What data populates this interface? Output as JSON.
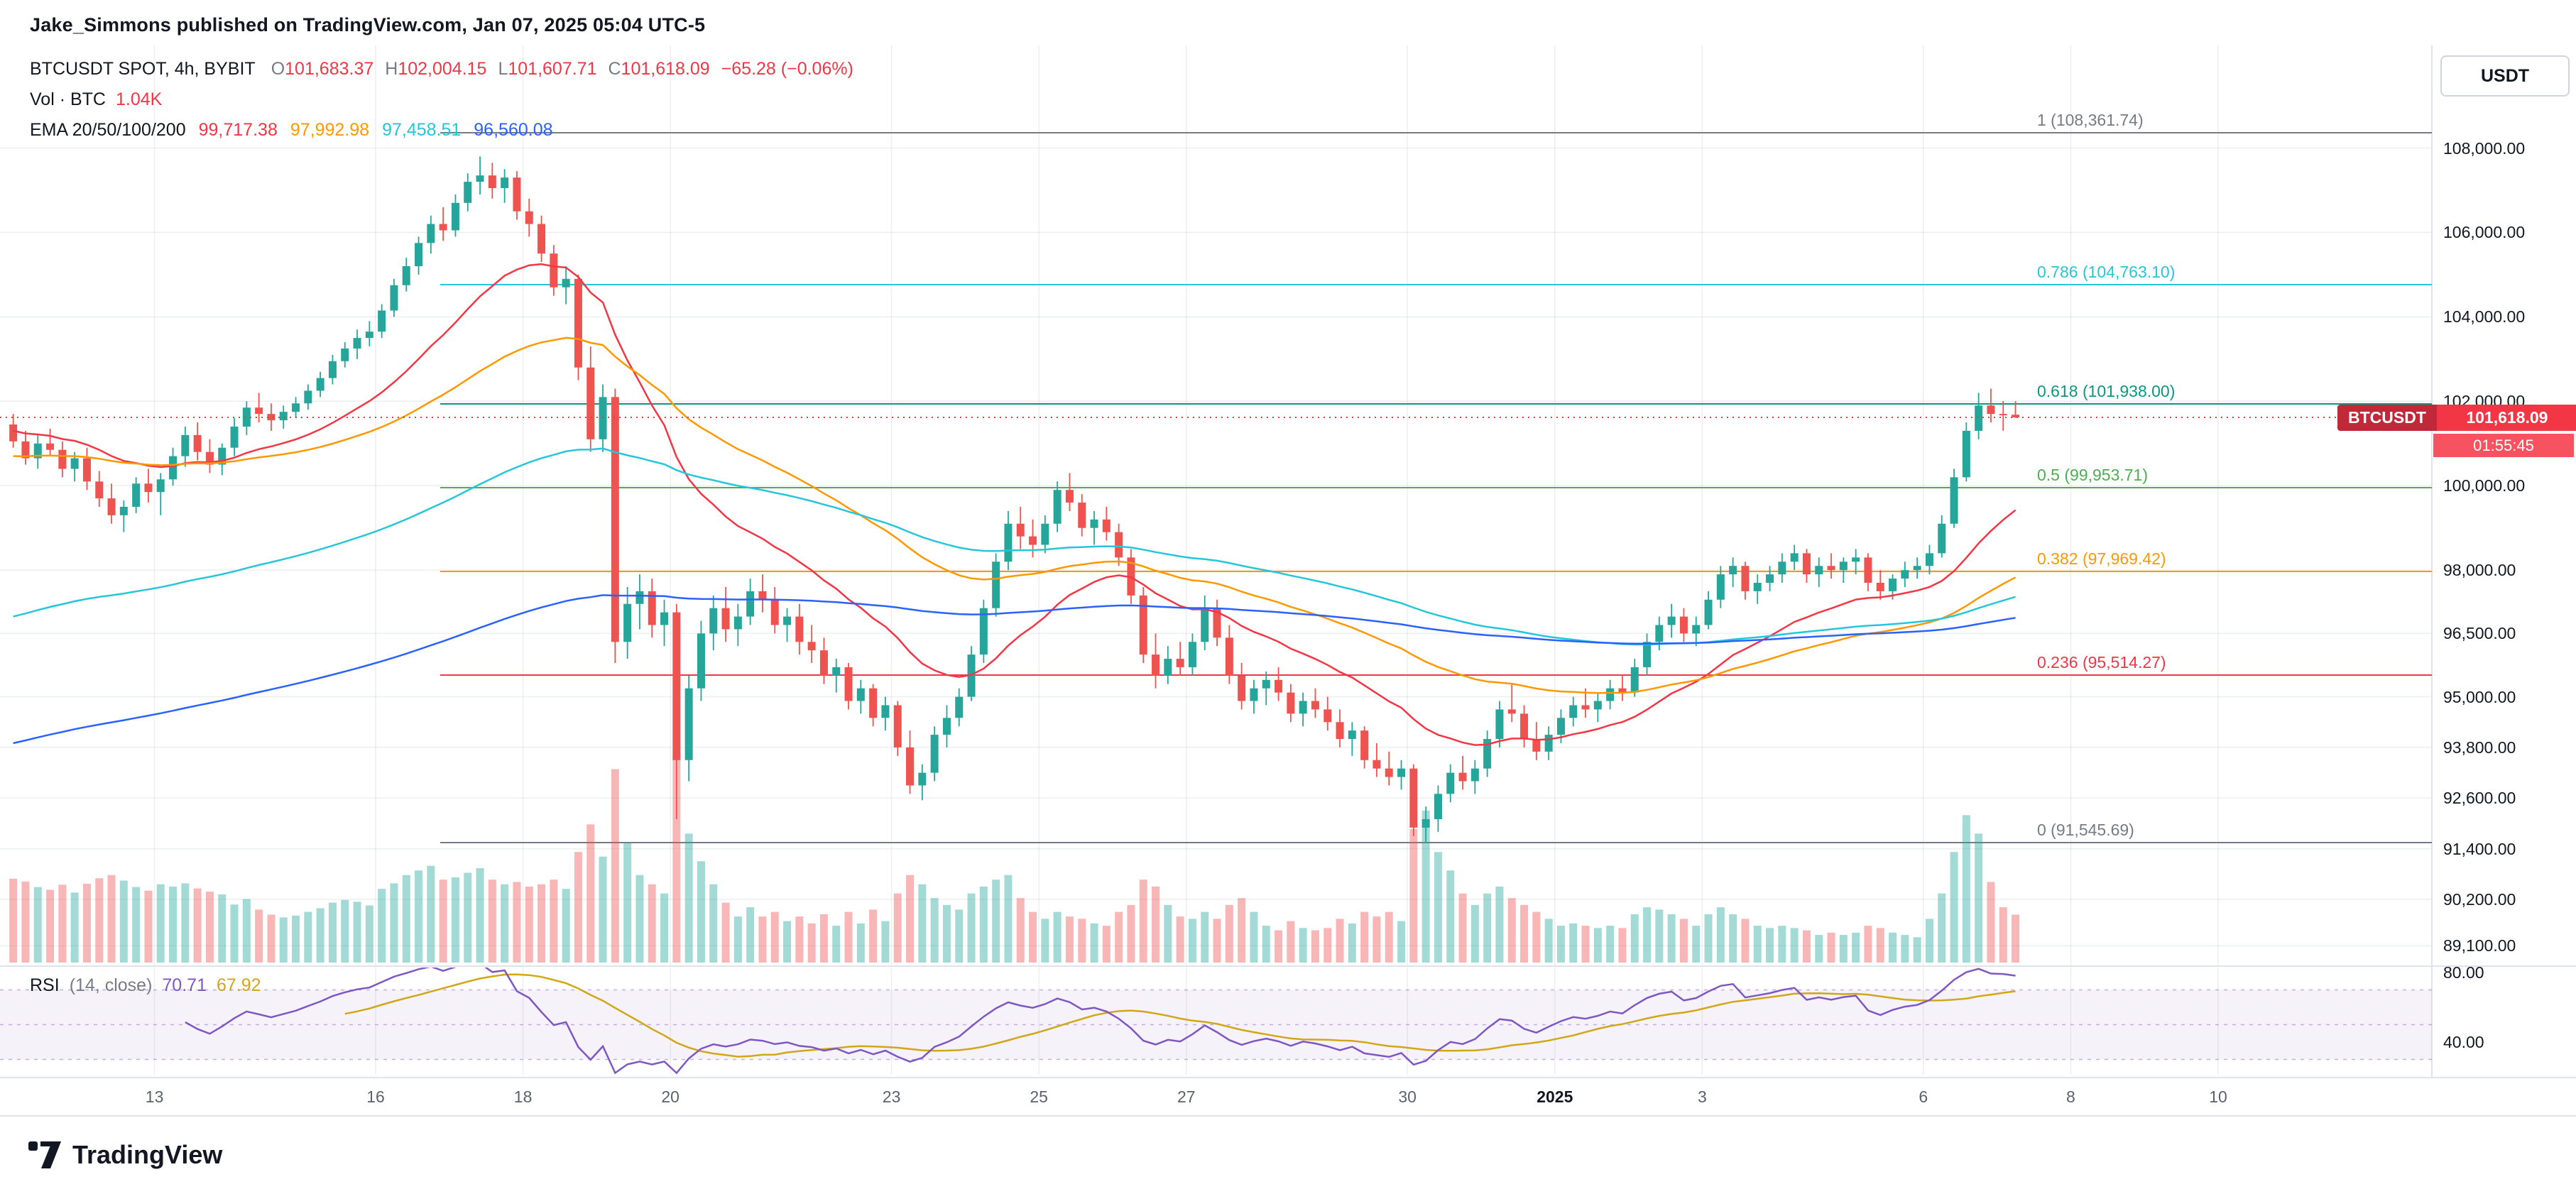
{
  "header": {
    "title": "Jake_Simmons published on TradingView.com, Jan 07, 2025 05:04 UTC-5"
  },
  "legend": {
    "symbol": "BTCUSDT SPOT, 4h, BYBIT",
    "ohlc": [
      {
        "k": "O",
        "v": "101,683.37"
      },
      {
        "k": "H",
        "v": "102,004.15"
      },
      {
        "k": "L",
        "v": "101,607.71"
      },
      {
        "k": "C",
        "v": "101,618.09"
      }
    ],
    "change": "−65.28 (−0.06%)",
    "ohlc_color": "#f23645",
    "volume_label": "Vol · BTC",
    "volume_value": "1.04K",
    "ema_label": "EMA 20/50/100/200",
    "ema_values": [
      "99,717.38",
      "97,992.98",
      "97,458.51",
      "96,560.08"
    ],
    "ema_colors": [
      "#f23645",
      "#ff9800",
      "#26c6da",
      "#2962ff"
    ]
  },
  "rsi_legend": {
    "label": "RSI",
    "params": "(14, close)",
    "value": "70.71",
    "ma_value": "67.92",
    "value_color": "#7e57c2",
    "ma_color": "#d1a617"
  },
  "price_badge": {
    "symbol": "BTCUSDT",
    "price": "101,618.09",
    "countdown": "01:55:45",
    "color": "#f23645"
  },
  "axis_button": {
    "label": "USDT"
  },
  "footer": {
    "brand": "TradingView"
  },
  "chart_data": {
    "type": "candlestick",
    "symbol": "BTCUSDT",
    "exchange": "BYBIT",
    "market": "SPOT",
    "interval": "4h",
    "unit": "USDT",
    "volume_unit": "BTC",
    "start_time": "2024-12-11 00:00",
    "candle_hours": 4,
    "last_price": 101618.09,
    "up_color": "#26a69a",
    "down_color": "#ef5350",
    "y_range": {
      "min": 88670,
      "max": 110430
    },
    "price_axis_ticks": [
      {
        "label": "108,000.00",
        "value": 108000
      },
      {
        "label": "106,000.00",
        "value": 106000
      },
      {
        "label": "104,000.00",
        "value": 104000
      },
      {
        "label": "102,000.00",
        "value": 102000
      },
      {
        "label": "100,000.00",
        "value": 100000
      },
      {
        "label": "98,000.00",
        "value": 98000
      },
      {
        "label": "96,500.00",
        "value": 96500
      },
      {
        "label": "95,000.00",
        "value": 95000
      },
      {
        "label": "93,800.00",
        "value": 93800
      },
      {
        "label": "92,600.00",
        "value": 92600
      },
      {
        "label": "91,400.00",
        "value": 91400
      },
      {
        "label": "90,200.00",
        "value": 90200
      },
      {
        "label": "89,100.00",
        "value": 89100
      }
    ],
    "rsi_axis_ticks": [
      {
        "label": "80.00",
        "value": 80
      },
      {
        "label": "40.00",
        "value": 40
      }
    ],
    "time_axis_ticks": [
      {
        "label": "13",
        "day": 2
      },
      {
        "label": "16",
        "day": 5
      },
      {
        "label": "18",
        "day": 7
      },
      {
        "label": "20",
        "day": 9
      },
      {
        "label": "23",
        "day": 12
      },
      {
        "label": "25",
        "day": 14
      },
      {
        "label": "27",
        "day": 16
      },
      {
        "label": "30",
        "day": 19
      },
      {
        "label": "2025",
        "day": 21
      },
      {
        "label": "3",
        "day": 23
      },
      {
        "label": "6",
        "day": 26
      },
      {
        "label": "8",
        "day": 28
      },
      {
        "label": "10",
        "day": 30
      }
    ],
    "fib_levels": [
      {
        "label": "1 (108,361.74)",
        "price": 108361.74,
        "color": "#787b86"
      },
      {
        "label": "0.786 (104,763.10)",
        "price": 104763.1,
        "color": "#26c6da"
      },
      {
        "label": "0.618 (101,938.00)",
        "price": 101938.0,
        "color": "#089981"
      },
      {
        "label": "0.5 (99,953.71)",
        "price": 99953.71,
        "color": "#4caf50"
      },
      {
        "label": "0.382 (97,969.42)",
        "price": 97969.42,
        "color": "#ff9800"
      },
      {
        "label": "0.236 (95,514.27)",
        "price": 95514.27,
        "color": "#f23645"
      },
      {
        "label": "0 (91,545.69)",
        "price": 91545.69,
        "color": "#787b86"
      }
    ],
    "indicators": {
      "ema": {
        "periods": [
          20,
          50,
          100,
          200
        ],
        "colors": [
          "#f23645",
          "#ff9800",
          "#26c6da",
          "#2962ff"
        ],
        "start_values": [
          101300,
          100700,
          96900,
          93900
        ],
        "current_values": [
          99717.38,
          97992.98,
          97458.51,
          96560.08
        ]
      },
      "rsi": {
        "period": 14,
        "source": "close",
        "color": "#7e57c2",
        "ma_color": "#d1a617",
        "bands": [
          70,
          50,
          30
        ],
        "band_fill": "rgba(126,87,194,0.08)",
        "current_value": 70.71,
        "current_ma": 67.92
      }
    },
    "candles": [
      [
        101450,
        101700,
        100900,
        101050,
        1820
      ],
      [
        101050,
        101300,
        100500,
        100650,
        1760
      ],
      [
        100650,
        101200,
        100400,
        101000,
        1640
      ],
      [
        101000,
        101350,
        100700,
        100850,
        1580
      ],
      [
        100850,
        101050,
        100200,
        100400,
        1690
      ],
      [
        100400,
        100800,
        100100,
        100650,
        1520
      ],
      [
        100650,
        100900,
        99900,
        100100,
        1710
      ],
      [
        100100,
        100350,
        99500,
        99700,
        1830
      ],
      [
        99700,
        100050,
        99100,
        99300,
        1900
      ],
      [
        99300,
        99650,
        98900,
        99500,
        1780
      ],
      [
        99500,
        100200,
        99350,
        100050,
        1640
      ],
      [
        100050,
        100400,
        99600,
        99850,
        1560
      ],
      [
        99850,
        100300,
        99300,
        100150,
        1700
      ],
      [
        100150,
        100900,
        100000,
        100700,
        1650
      ],
      [
        100700,
        101400,
        100450,
        101200,
        1720
      ],
      [
        101200,
        101500,
        100600,
        100800,
        1610
      ],
      [
        100800,
        101100,
        100300,
        100500,
        1540
      ],
      [
        100500,
        101000,
        100250,
        100900,
        1480
      ],
      [
        100900,
        101600,
        100700,
        101400,
        1260
      ],
      [
        101400,
        102000,
        101200,
        101850,
        1380
      ],
      [
        101850,
        102200,
        101500,
        101700,
        1150
      ],
      [
        101700,
        101950,
        101300,
        101550,
        1040
      ],
      [
        101550,
        101900,
        101350,
        101750,
        980
      ],
      [
        101750,
        102100,
        101600,
        101950,
        1020
      ],
      [
        101950,
        102400,
        101800,
        102250,
        1100
      ],
      [
        102250,
        102700,
        102100,
        102550,
        1180
      ],
      [
        102550,
        103100,
        102400,
        102950,
        1300
      ],
      [
        102950,
        103400,
        102800,
        103250,
        1360
      ],
      [
        103250,
        103700,
        103000,
        103500,
        1320
      ],
      [
        103500,
        103900,
        103300,
        103650,
        1240
      ],
      [
        103650,
        104300,
        103500,
        104150,
        1600
      ],
      [
        104150,
        104900,
        104000,
        104750,
        1720
      ],
      [
        104750,
        105400,
        104600,
        105200,
        1900
      ],
      [
        105200,
        105900,
        105000,
        105750,
        2000
      ],
      [
        105750,
        106400,
        105500,
        106200,
        2100
      ],
      [
        106200,
        106600,
        105800,
        106050,
        1800
      ],
      [
        106050,
        106900,
        105900,
        106700,
        1850
      ],
      [
        106700,
        107400,
        106500,
        107200,
        1950
      ],
      [
        107200,
        107800,
        106900,
        107350,
        2050
      ],
      [
        107350,
        107650,
        106800,
        107050,
        1800
      ],
      [
        107050,
        107500,
        106700,
        107300,
        1700
      ],
      [
        107300,
        107450,
        106300,
        106500,
        1750
      ],
      [
        106500,
        106800,
        105900,
        106200,
        1650
      ],
      [
        106200,
        106400,
        105300,
        105500,
        1700
      ],
      [
        105500,
        105700,
        104500,
        104700,
        1800
      ],
      [
        104700,
        105200,
        104300,
        104900,
        1600
      ],
      [
        104900,
        105000,
        102500,
        102800,
        2400
      ],
      [
        102800,
        103300,
        100800,
        101100,
        3000
      ],
      [
        101100,
        102400,
        100800,
        102100,
        2300
      ],
      [
        102100,
        102300,
        95800,
        96300,
        4200
      ],
      [
        96300,
        97600,
        95900,
        97200,
        2600
      ],
      [
        97200,
        97900,
        96600,
        97500,
        1900
      ],
      [
        97500,
        97800,
        96400,
        96700,
        1700
      ],
      [
        96700,
        97300,
        96200,
        97000,
        1500
      ],
      [
        97000,
        97200,
        92100,
        93500,
        4500
      ],
      [
        93500,
        95500,
        93000,
        95200,
        2800
      ],
      [
        95200,
        96800,
        94900,
        96500,
        2200
      ],
      [
        96500,
        97400,
        96100,
        97100,
        1700
      ],
      [
        97100,
        97600,
        96300,
        96600,
        1300
      ],
      [
        96600,
        97200,
        96200,
        96900,
        1000
      ],
      [
        96900,
        97800,
        96700,
        97500,
        1200
      ],
      [
        97500,
        97900,
        97000,
        97300,
        1000
      ],
      [
        97300,
        97600,
        96500,
        96700,
        1100
      ],
      [
        96700,
        97100,
        96300,
        96900,
        900
      ],
      [
        96900,
        97200,
        96000,
        96300,
        1000
      ],
      [
        96300,
        96700,
        95800,
        96100,
        850
      ],
      [
        96100,
        96400,
        95300,
        95500,
        1050
      ],
      [
        95500,
        95900,
        95100,
        95700,
        800
      ],
      [
        95700,
        95800,
        94700,
        94900,
        1100
      ],
      [
        94900,
        95400,
        94600,
        95200,
        850
      ],
      [
        95200,
        95300,
        94300,
        94500,
        1150
      ],
      [
        94500,
        95000,
        94200,
        94800,
        900
      ],
      [
        94800,
        94900,
        93600,
        93800,
        1500
      ],
      [
        93800,
        94200,
        92700,
        92900,
        1900
      ],
      [
        92900,
        93400,
        92550,
        93200,
        1700
      ],
      [
        93200,
        94300,
        93000,
        94100,
        1400
      ],
      [
        94100,
        94800,
        93800,
        94500,
        1250
      ],
      [
        94500,
        95200,
        94300,
        95000,
        1150
      ],
      [
        95000,
        96200,
        94900,
        96000,
        1500
      ],
      [
        96000,
        97300,
        95800,
        97100,
        1650
      ],
      [
        97100,
        98400,
        96900,
        98200,
        1800
      ],
      [
        98200,
        99400,
        98000,
        99100,
        1900
      ],
      [
        99100,
        99500,
        98500,
        98800,
        1400
      ],
      [
        98800,
        99200,
        98300,
        98600,
        1100
      ],
      [
        98600,
        99300,
        98400,
        99100,
        950
      ],
      [
        99100,
        100100,
        98900,
        99900,
        1100
      ],
      [
        99900,
        100300,
        99400,
        99600,
        1000
      ],
      [
        99600,
        99800,
        98800,
        99000,
        950
      ],
      [
        99000,
        99400,
        98600,
        99200,
        850
      ],
      [
        99200,
        99500,
        98700,
        98900,
        800
      ],
      [
        98900,
        99100,
        98100,
        98300,
        1100
      ],
      [
        98300,
        98500,
        97200,
        97400,
        1250
      ],
      [
        97400,
        97600,
        95800,
        96000,
        1800
      ],
      [
        96000,
        96500,
        95200,
        95500,
        1650
      ],
      [
        95500,
        96200,
        95300,
        95900,
        1250
      ],
      [
        95900,
        96300,
        95500,
        95700,
        1000
      ],
      [
        95700,
        96500,
        95500,
        96300,
        950
      ],
      [
        96300,
        97400,
        96100,
        97100,
        1100
      ],
      [
        97100,
        97300,
        96200,
        96400,
        950
      ],
      [
        96400,
        96700,
        95300,
        95500,
        1250
      ],
      [
        95500,
        95800,
        94700,
        94900,
        1400
      ],
      [
        94900,
        95400,
        94600,
        95200,
        1100
      ],
      [
        95200,
        95600,
        94800,
        95400,
        800
      ],
      [
        95400,
        95700,
        94900,
        95100,
        700
      ],
      [
        95100,
        95300,
        94400,
        94600,
        900
      ],
      [
        94600,
        95100,
        94300,
        94900,
        750
      ],
      [
        94900,
        95200,
        94500,
        94700,
        700
      ],
      [
        94700,
        95000,
        94200,
        94400,
        750
      ],
      [
        94400,
        94700,
        93800,
        94000,
        950
      ],
      [
        94000,
        94400,
        93600,
        94200,
        850
      ],
      [
        94200,
        94300,
        93300,
        93500,
        1100
      ],
      [
        93500,
        93900,
        93100,
        93300,
        1000
      ],
      [
        93300,
        93700,
        92900,
        93100,
        1100
      ],
      [
        93100,
        93500,
        92800,
        93300,
        900
      ],
      [
        93300,
        93400,
        91700,
        91900,
        2900
      ],
      [
        91900,
        92400,
        91550,
        92100,
        3300
      ],
      [
        92100,
        92900,
        91800,
        92700,
        2400
      ],
      [
        92700,
        93400,
        92500,
        93200,
        2000
      ],
      [
        93200,
        93600,
        92800,
        93000,
        1500
      ],
      [
        93000,
        93500,
        92700,
        93300,
        1250
      ],
      [
        93300,
        94200,
        93100,
        94000,
        1500
      ],
      [
        94000,
        94900,
        93800,
        94700,
        1650
      ],
      [
        94700,
        95300,
        94400,
        94600,
        1400
      ],
      [
        94600,
        94800,
        93800,
        94000,
        1250
      ],
      [
        94000,
        94400,
        93500,
        93700,
        1100
      ],
      [
        93700,
        94300,
        93500,
        94100,
        950
      ],
      [
        94100,
        94700,
        93900,
        94500,
        800
      ],
      [
        94500,
        95000,
        94300,
        94800,
        850
      ],
      [
        94800,
        95200,
        94500,
        94700,
        800
      ],
      [
        94700,
        95100,
        94400,
        94900,
        750
      ],
      [
        94900,
        95400,
        94700,
        95200,
        800
      ],
      [
        95200,
        95500,
        94900,
        95100,
        750
      ],
      [
        95100,
        95900,
        95000,
        95700,
        1050
      ],
      [
        95700,
        96500,
        95500,
        96300,
        1200
      ],
      [
        96300,
        96900,
        96100,
        96700,
        1150
      ],
      [
        96700,
        97200,
        96400,
        96900,
        1050
      ],
      [
        96900,
        97100,
        96300,
        96500,
        950
      ],
      [
        96500,
        96900,
        96200,
        96700,
        800
      ],
      [
        96700,
        97500,
        96600,
        97300,
        1050
      ],
      [
        97300,
        98100,
        97100,
        97900,
        1200
      ],
      [
        97900,
        98300,
        97600,
        98100,
        1050
      ],
      [
        98100,
        98200,
        97300,
        97500,
        950
      ],
      [
        97500,
        97900,
        97200,
        97700,
        800
      ],
      [
        97700,
        98100,
        97500,
        97900,
        750
      ],
      [
        97900,
        98400,
        97700,
        98200,
        800
      ],
      [
        98200,
        98600,
        98000,
        98400,
        750
      ],
      [
        98400,
        98500,
        97700,
        97900,
        700
      ],
      [
        97900,
        98300,
        97600,
        98100,
        600
      ],
      [
        98100,
        98400,
        97800,
        98000,
        650
      ],
      [
        98000,
        98300,
        97700,
        98200,
        600
      ],
      [
        98200,
        98500,
        97900,
        98300,
        650
      ],
      [
        98300,
        98400,
        97500,
        97700,
        800
      ],
      [
        97700,
        98000,
        97300,
        97500,
        750
      ],
      [
        97500,
        97900,
        97300,
        97800,
        650
      ],
      [
        97800,
        98200,
        97600,
        98000,
        600
      ],
      [
        98000,
        98300,
        97800,
        98100,
        550
      ],
      [
        98100,
        98600,
        97900,
        98400,
        950
      ],
      [
        98400,
        99300,
        98300,
        99100,
        1500
      ],
      [
        99100,
        100400,
        99000,
        100200,
        2400
      ],
      [
        100200,
        101500,
        100100,
        101300,
        3200
      ],
      [
        101300,
        102200,
        101100,
        101900,
        2800
      ],
      [
        101900,
        102300,
        101500,
        101700,
        1750
      ],
      [
        101700,
        102004,
        101300,
        101683,
        1200
      ],
      [
        101683.37,
        102004.15,
        101607.71,
        101618.09,
        1040
      ]
    ]
  }
}
